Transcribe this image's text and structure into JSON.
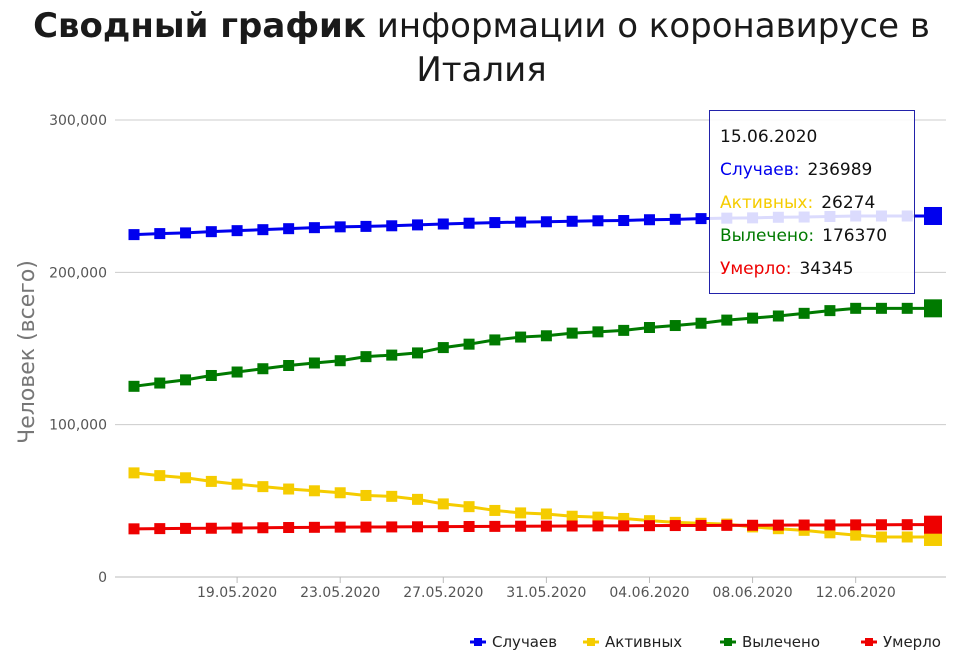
{
  "title": {
    "bold": "Сводный график",
    "rest": "информации о коронавирусе в",
    "line2": "Италия"
  },
  "chart_data": {
    "type": "line",
    "ylabel": "Человек (всего)",
    "ylim": [
      0,
      300000
    ],
    "yticks": [
      0,
      100000,
      200000,
      300000
    ],
    "ytick_labels": [
      "0",
      "100,000",
      "200,000",
      "300,000"
    ],
    "x": [
      "15.05.2020",
      "16.05.2020",
      "17.05.2020",
      "18.05.2020",
      "19.05.2020",
      "20.05.2020",
      "21.05.2020",
      "22.05.2020",
      "23.05.2020",
      "24.05.2020",
      "25.05.2020",
      "26.05.2020",
      "27.05.2020",
      "28.05.2020",
      "29.05.2020",
      "30.05.2020",
      "31.05.2020",
      "01.06.2020",
      "02.06.2020",
      "03.06.2020",
      "04.06.2020",
      "05.06.2020",
      "06.06.2020",
      "07.06.2020",
      "08.06.2020",
      "09.06.2020",
      "10.06.2020",
      "11.06.2020",
      "12.06.2020",
      "13.06.2020",
      "14.06.2020",
      "15.06.2020"
    ],
    "xtick_labels": [
      "19.05.2020",
      "23.05.2020",
      "27.05.2020",
      "31.05.2020",
      "04.06.2020",
      "08.06.2020",
      "12.06.2020"
    ],
    "grid": true,
    "legend_position": "bottom-right",
    "series": [
      {
        "name": "Случаев",
        "color": "#0000ee",
        "values": [
          224760,
          225435,
          225886,
          226699,
          227364,
          228006,
          228658,
          229327,
          229858,
          230158,
          230555,
          231139,
          231732,
          232248,
          232664,
          232997,
          233197,
          233515,
          233836,
          234013,
          234531,
          234801,
          235278,
          235561,
          235763,
          236142,
          236305,
          236651,
          236989,
          236989,
          236989,
          236989
        ]
      },
      {
        "name": "Активных",
        "color": "#f5cc00",
        "values": [
          68351,
          66553,
          65129,
          62752,
          60960,
          59322,
          57752,
          56594,
          55300,
          53521,
          52942,
          50966,
          47986,
          46175,
          43691,
          42075,
          41367,
          39893,
          39297,
          38429,
          36976,
          35877,
          35262,
          34730,
          32872,
          31710,
          30637,
          28997,
          27485,
          26274,
          26274,
          26274
        ]
      },
      {
        "name": "Вылечено",
        "color": "#007a00",
        "values": [
          125176,
          127326,
          129401,
          132282,
          134560,
          136720,
          138840,
          140479,
          141981,
          144658,
          145668,
          147101,
          150604,
          152844,
          155633,
          157507,
          158355,
          160092,
          160938,
          161895,
          163781,
          165078,
          166584,
          168646,
          169939,
          171338,
          173085,
          174865,
          176370,
          176370,
          176370,
          176370
        ]
      },
      {
        "name": "Умерло",
        "color": "#ee0000",
        "values": [
          31610,
          31763,
          31908,
          32007,
          32169,
          32330,
          32486,
          32616,
          32735,
          32785,
          32877,
          32955,
          33072,
          33142,
          33229,
          33340,
          33415,
          33475,
          33530,
          33601,
          33689,
          33774,
          33846,
          33899,
          33964,
          34043,
          34114,
          34167,
          34223,
          34301,
          34345,
          34345
        ]
      }
    ]
  },
  "tooltip": {
    "date": "15.06.2020",
    "rows": [
      {
        "label": "Случаев:",
        "value": "236989",
        "color": "#0000ee"
      },
      {
        "label": "Активных:",
        "value": "26274",
        "color": "#f5cc00"
      },
      {
        "label": "Вылечено:",
        "value": "176370",
        "color": "#007a00"
      },
      {
        "label": "Умерло:",
        "value": "34345",
        "color": "#ee0000"
      }
    ]
  }
}
